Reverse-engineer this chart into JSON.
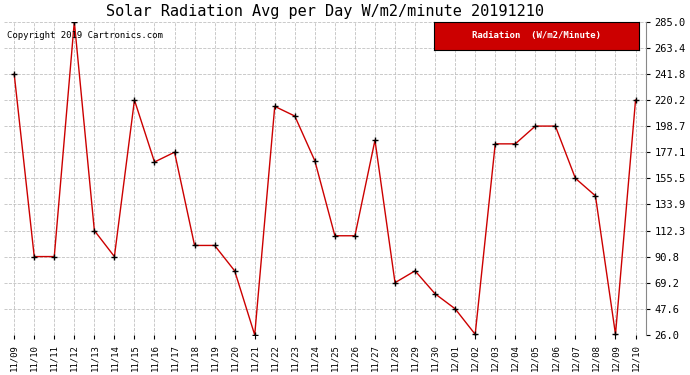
{
  "title": "Solar Radiation Avg per Day W/m2/minute 20191210",
  "copyright": "Copyright 2019 Cartronics.com",
  "legend_label": "Radiation  (W/m2/Minute)",
  "dates": [
    "11/09",
    "11/10",
    "11/11",
    "11/12",
    "11/13",
    "11/14",
    "11/15",
    "11/16",
    "11/17",
    "11/18",
    "11/19",
    "11/20",
    "11/21",
    "11/22",
    "11/23",
    "11/24",
    "11/25",
    "11/26",
    "11/27",
    "11/28",
    "11/29",
    "11/30",
    "12/01",
    "12/02",
    "12/03",
    "12/04",
    "12/05",
    "12/06",
    "12/07",
    "12/08",
    "12/09",
    "12/10"
  ],
  "values": [
    241.8,
    90.8,
    90.8,
    285.0,
    112.3,
    90.8,
    220.2,
    169.0,
    177.1,
    100.0,
    100.0,
    79.0,
    26.0,
    215.0,
    207.0,
    170.0,
    108.0,
    108.0,
    187.0,
    69.2,
    79.0,
    60.0,
    47.6,
    26.5,
    184.0,
    184.0,
    198.7,
    198.7,
    155.5,
    141.0,
    26.5,
    220.2
  ],
  "ylim_min": 26.0,
  "ylim_max": 285.0,
  "yticks": [
    26.0,
    47.6,
    69.2,
    90.8,
    112.3,
    133.9,
    155.5,
    177.1,
    198.7,
    220.2,
    241.8,
    263.4,
    285.0
  ],
  "line_color": "#cc0000",
  "marker_color": "#000000",
  "bg_color": "#ffffff",
  "grid_color": "#bbbbbb",
  "title_fontsize": 11,
  "legend_bg": "#cc0000",
  "legend_text_color": "#ffffff",
  "figwidth": 6.9,
  "figheight": 3.75,
  "dpi": 100
}
